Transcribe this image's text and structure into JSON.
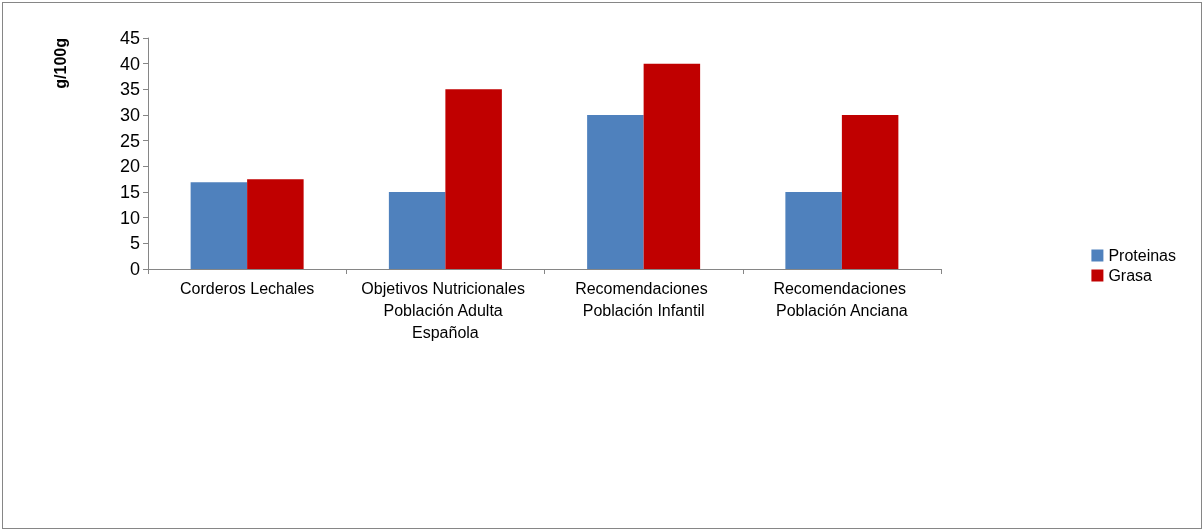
{
  "chart_data": {
    "type": "bar",
    "ylabel": "g/100g",
    "categories": [
      "Corderos Lechales",
      "Objetivos Nutricionales Población Adulta Española",
      "Recomendaciones Población Infantil",
      "Recomendaciones Población Anciana"
    ],
    "series": [
      {
        "name": "Proteinas",
        "color": "#4f81bd",
        "values": [
          16.9,
          15,
          30,
          15
        ]
      },
      {
        "name": "Grasa",
        "color": "#c00000",
        "values": [
          17.5,
          35,
          40,
          30
        ]
      }
    ],
    "ylim": [
      0,
      45
    ],
    "yticks": [
      0,
      5,
      10,
      15,
      20,
      25,
      30,
      35,
      40,
      45
    ],
    "grid": false,
    "legend": "right"
  }
}
